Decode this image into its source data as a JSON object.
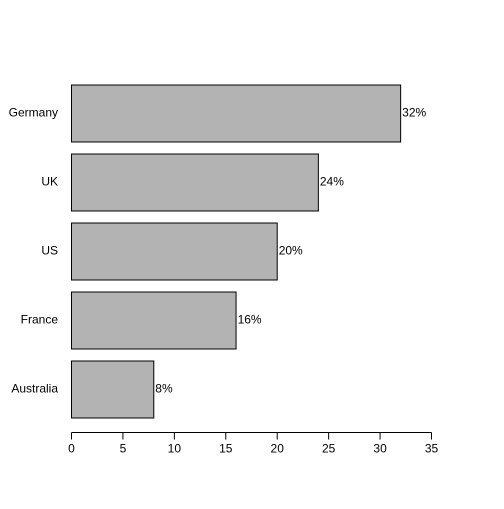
{
  "chart_data": {
    "type": "bar",
    "orientation": "horizontal",
    "categories": [
      "Germany",
      "UK",
      "US",
      "France",
      "Australia"
    ],
    "values": [
      32,
      24,
      20,
      16,
      8
    ],
    "data_labels": [
      "32%",
      "24%",
      "20%",
      "16%",
      "8%"
    ],
    "title": "",
    "xlabel": "",
    "ylabel": "",
    "xlim": [
      0,
      35
    ],
    "x_ticks": [
      0,
      5,
      10,
      15,
      20,
      25,
      30,
      35
    ],
    "grid": false,
    "legend": "none",
    "colors": {
      "bar_fill": "#b3b3b3",
      "bar_stroke": "#000000",
      "axis": "#000000",
      "text": "#000000",
      "background": "#ffffff"
    }
  }
}
